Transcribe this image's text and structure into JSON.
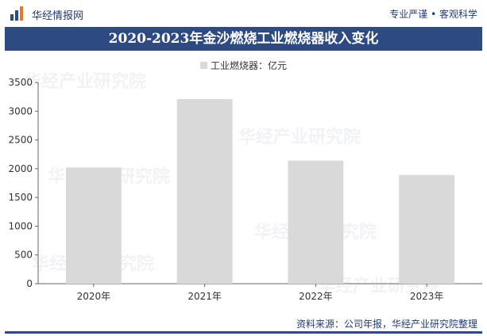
{
  "header": {
    "brand": "华经情报网",
    "slogan": "专业严谨 • 客观科学"
  },
  "title": "2020-2023年金沙燃烧工业燃烧器收入变化",
  "source": "资料来源：公司年报，华经产业研究院整理",
  "watermark": "华经产业研究院",
  "colors": {
    "bar": "#d9d9d9",
    "title_bg": "#2d4a83",
    "brand": "#1f3b73"
  },
  "chart_data": {
    "type": "bar",
    "title": "2020-2023年金沙燃烧工业燃烧器收入变化",
    "categories": [
      "2020年",
      "2021年",
      "2022年",
      "2023年"
    ],
    "series": [
      {
        "name": "工业燃烧器：亿元",
        "values": [
          2020,
          3210,
          2140,
          1890
        ]
      }
    ],
    "ylim": [
      0,
      3500
    ],
    "yticks": [
      0,
      500,
      1000,
      1500,
      2000,
      2500,
      3000,
      3500
    ],
    "grid": false,
    "legend": "top-center"
  }
}
